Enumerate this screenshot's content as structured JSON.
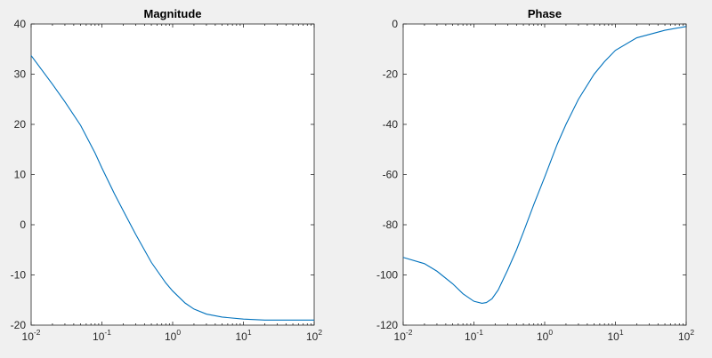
{
  "chart_data": [
    {
      "type": "line",
      "title": "Magnitude",
      "xscale": "log",
      "xlim": [
        0.01,
        100
      ],
      "ylim": [
        -20,
        40
      ],
      "xticks": [
        {
          "base": "10",
          "exp": "-2"
        },
        {
          "base": "10",
          "exp": "-1"
        },
        {
          "base": "10",
          "exp": "0"
        },
        {
          "base": "10",
          "exp": "1"
        },
        {
          "base": "10",
          "exp": "2"
        }
      ],
      "xtick_values": [
        0.01,
        0.1,
        1,
        10,
        100
      ],
      "yticks": [
        "-20",
        "-10",
        "0",
        "10",
        "20",
        "30",
        "40"
      ],
      "ytick_values": [
        -20,
        -10,
        0,
        10,
        20,
        30,
        40
      ],
      "grid": false,
      "color": "#0072bd",
      "series": [
        {
          "x": [
            0.01,
            0.02,
            0.03,
            0.05,
            0.08,
            0.1,
            0.15,
            0.2,
            0.3,
            0.5,
            0.8,
            1,
            1.5,
            2,
            3,
            5,
            10,
            20,
            50,
            100
          ],
          "y": [
            33.7,
            28.0,
            24.5,
            19.8,
            14.3,
            11.3,
            6.2,
            2.8,
            -1.9,
            -7.5,
            -11.6,
            -13.2,
            -15.6,
            -16.8,
            -17.8,
            -18.4,
            -18.8,
            -19.0,
            -19.0,
            -19.0
          ]
        }
      ]
    },
    {
      "type": "line",
      "title": "Phase",
      "xscale": "log",
      "xlim": [
        0.01,
        100
      ],
      "ylim": [
        -120,
        0
      ],
      "xticks": [
        {
          "base": "10",
          "exp": "-2"
        },
        {
          "base": "10",
          "exp": "-1"
        },
        {
          "base": "10",
          "exp": "0"
        },
        {
          "base": "10",
          "exp": "1"
        },
        {
          "base": "10",
          "exp": "2"
        }
      ],
      "xtick_values": [
        0.01,
        0.1,
        1,
        10,
        100
      ],
      "yticks": [
        "-120",
        "-100",
        "-80",
        "-60",
        "-40",
        "-20",
        "0"
      ],
      "ytick_values": [
        -120,
        -100,
        -80,
        -60,
        -40,
        -20,
        0
      ],
      "grid": false,
      "color": "#0072bd",
      "series": [
        {
          "x": [
            0.01,
            0.02,
            0.03,
            0.05,
            0.07,
            0.1,
            0.13,
            0.15,
            0.18,
            0.22,
            0.3,
            0.4,
            0.5,
            0.7,
            1,
            1.5,
            2,
            3,
            5,
            7,
            10,
            20,
            50,
            100
          ],
          "y": [
            -93.0,
            -95.5,
            -98.5,
            -103.5,
            -107.5,
            -110.5,
            -111.3,
            -111.0,
            -109.5,
            -106.0,
            -98.0,
            -90.0,
            -83.0,
            -72.0,
            -61.0,
            -48.0,
            -40.0,
            -30.0,
            -20.0,
            -15.0,
            -10.5,
            -5.5,
            -2.5,
            -1.0
          ]
        }
      ]
    }
  ]
}
